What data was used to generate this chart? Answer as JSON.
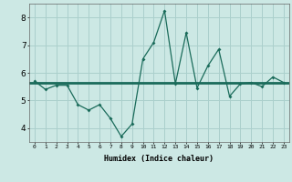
{
  "x": [
    0,
    1,
    2,
    3,
    4,
    5,
    6,
    7,
    8,
    9,
    10,
    11,
    12,
    13,
    14,
    15,
    16,
    17,
    18,
    19,
    20,
    21,
    22,
    23
  ],
  "y_line": [
    5.7,
    5.4,
    5.55,
    5.55,
    4.85,
    4.65,
    4.85,
    4.35,
    3.7,
    4.15,
    6.5,
    7.1,
    8.25,
    5.6,
    7.45,
    5.45,
    6.25,
    6.85,
    5.15,
    5.6,
    5.65,
    5.5,
    5.85,
    5.65
  ],
  "y_hline": 5.65,
  "line_color": "#1a6b5a",
  "bg_color": "#cce8e4",
  "grid_color": "#aacfcc",
  "xlabel": "Humidex (Indice chaleur)",
  "ylim": [
    3.5,
    8.5
  ],
  "xlim": [
    -0.5,
    23.5
  ],
  "yticks": [
    4,
    5,
    6,
    7,
    8
  ],
  "xticks": [
    0,
    1,
    2,
    3,
    4,
    5,
    6,
    7,
    8,
    9,
    10,
    11,
    12,
    13,
    14,
    15,
    16,
    17,
    18,
    19,
    20,
    21,
    22,
    23
  ]
}
